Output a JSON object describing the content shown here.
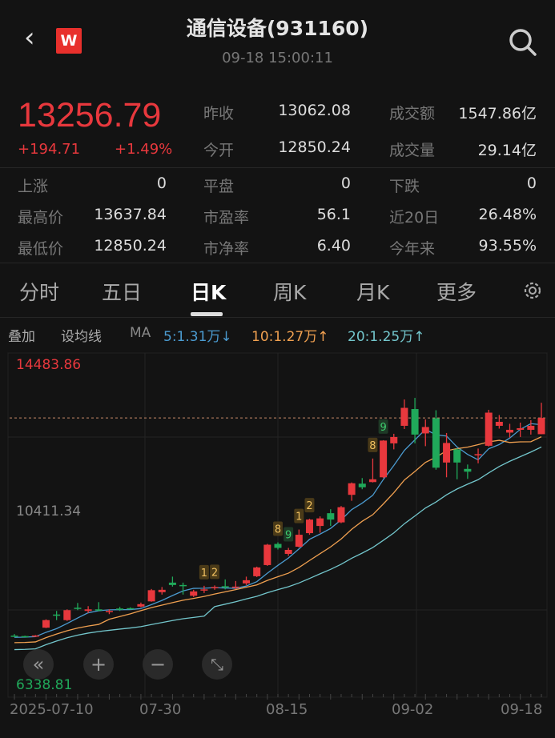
{
  "header": {
    "title": "通信设备(931160)",
    "time": "09-18 15:00:11",
    "logo": "W"
  },
  "quote": {
    "price": "13256.79",
    "change": "+194.71",
    "change_pct": "+1.49%"
  },
  "stats": [
    [
      {
        "label": "昨收",
        "value": "13062.08"
      },
      {
        "label": "成交额",
        "value": "1547.86亿"
      }
    ],
    [
      {
        "label": "今开",
        "value": "12850.24"
      },
      {
        "label": "成交量",
        "value": "29.14亿"
      }
    ]
  ],
  "grid": [
    [
      {
        "label": "上涨",
        "value": "0"
      },
      {
        "label": "平盘",
        "value": "0"
      },
      {
        "label": "下跌",
        "value": "0"
      }
    ],
    [
      {
        "label": "最高价",
        "value": "13637.84"
      },
      {
        "label": "市盈率",
        "value": "56.1"
      },
      {
        "label": "近20日",
        "value": "26.48%"
      }
    ],
    [
      {
        "label": "最低价",
        "value": "12850.24"
      },
      {
        "label": "市净率",
        "value": "6.40"
      },
      {
        "label": "今年来",
        "value": "93.55%"
      }
    ]
  ],
  "tabs": [
    {
      "label": "分时"
    },
    {
      "label": "五日"
    },
    {
      "label": "日K",
      "active": true
    },
    {
      "label": "周K"
    },
    {
      "label": "月K"
    },
    {
      "label": "更多"
    }
  ],
  "toolbar": {
    "overlay": "叠加",
    "set_ma": "设均线",
    "ma": "MA",
    "ma5": "5:1.31万↓",
    "ma10": "10:1.27万↑",
    "ma20": "20:1.25万↑"
  },
  "colors": {
    "up": "#e8383d",
    "down": "#20a95a",
    "ma5": "#4b9bd0",
    "ma10": "#f0a050",
    "ma20": "#73c6cc"
  },
  "chart_data": {
    "type": "candlestick",
    "ymax_label": "14483.86",
    "ymid_label": "10411.34",
    "ymin_label": "6338.81",
    "ylim": [
      6338.81,
      14483.86
    ],
    "x_labels": [
      "2025-07-10",
      "07-30",
      "08-15",
      "09-02",
      "09-18"
    ],
    "candles_ohlc": [
      [
        7800,
        7840,
        7770,
        7790
      ],
      [
        7790,
        7800,
        7770,
        7785
      ],
      [
        7775,
        7815,
        7765,
        7805
      ],
      [
        8000,
        8210,
        7990,
        8190
      ],
      [
        8330,
        8420,
        8190,
        8310
      ],
      [
        8190,
        8460,
        8170,
        8440
      ],
      [
        8500,
        8620,
        8440,
        8470
      ],
      [
        8420,
        8540,
        8370,
        8460
      ],
      [
        8460,
        8640,
        8410,
        8450
      ],
      [
        8390,
        8460,
        8340,
        8420
      ],
      [
        8480,
        8520,
        8420,
        8460
      ],
      [
        8490,
        8510,
        8460,
        8480
      ],
      [
        8530,
        8630,
        8510,
        8590
      ],
      [
        8660,
        8970,
        8650,
        8940
      ],
      [
        8890,
        9020,
        8830,
        8950
      ],
      [
        9130,
        9280,
        9030,
        9070
      ],
      [
        9070,
        9130,
        8830,
        9060
      ],
      [
        8800,
        8950,
        8770,
        8910
      ],
      [
        8930,
        9050,
        8870,
        8960
      ],
      [
        8990,
        9060,
        8950,
        9020
      ],
      [
        9040,
        9210,
        8960,
        9020
      ],
      [
        9000,
        9170,
        8970,
        9030
      ],
      [
        9110,
        9280,
        9070,
        9190
      ],
      [
        9290,
        9530,
        9270,
        9510
      ],
      [
        9570,
        10100,
        9550,
        10080
      ],
      [
        10100,
        10140,
        9960,
        10000
      ],
      [
        9850,
        10000,
        9800,
        9950
      ],
      [
        10030,
        10460,
        10010,
        10330
      ],
      [
        10370,
        10730,
        10330,
        10710
      ],
      [
        10550,
        10790,
        10380,
        10740
      ],
      [
        10870,
        10970,
        10550,
        10710
      ],
      [
        10640,
        11050,
        10620,
        11020
      ],
      [
        11330,
        11640,
        11180,
        11620
      ],
      [
        11610,
        11750,
        11470,
        11520
      ],
      [
        11650,
        12240,
        11640,
        11720
      ],
      [
        11770,
        12700,
        11750,
        12690
      ],
      [
        12620,
        12860,
        12470,
        12780
      ],
      [
        13060,
        13720,
        12980,
        13510
      ],
      [
        13480,
        13760,
        12620,
        12840
      ],
      [
        12870,
        13220,
        12550,
        13030
      ],
      [
        13250,
        13450,
        11960,
        12010
      ],
      [
        12140,
        12880,
        11770,
        12630
      ],
      [
        12470,
        12500,
        11720,
        12140
      ],
      [
        11980,
        12090,
        11730,
        11910
      ],
      [
        12320,
        12490,
        12120,
        12350
      ],
      [
        12560,
        13460,
        12540,
        13390
      ],
      [
        13060,
        13330,
        12990,
        13160
      ],
      [
        12890,
        13110,
        12770,
        12960
      ],
      [
        12960,
        13140,
        12780,
        13000
      ],
      [
        12960,
        13200,
        12840,
        13060
      ],
      [
        12850.24,
        13637.84,
        12850.24,
        13256.79
      ]
    ],
    "markers": [
      {
        "index": 18,
        "text": "1"
      },
      {
        "index": 19,
        "text": "2"
      },
      {
        "index": 25,
        "text": "8"
      },
      {
        "index": 26,
        "text": "9",
        "down": true
      },
      {
        "index": 27,
        "text": "1"
      },
      {
        "index": 28,
        "text": "2"
      },
      {
        "index": 34,
        "text": "8"
      },
      {
        "index": 35,
        "text": "9",
        "down": true
      }
    ],
    "moving_averages": [
      5,
      10,
      20
    ],
    "last_price_line": 13256.79
  }
}
